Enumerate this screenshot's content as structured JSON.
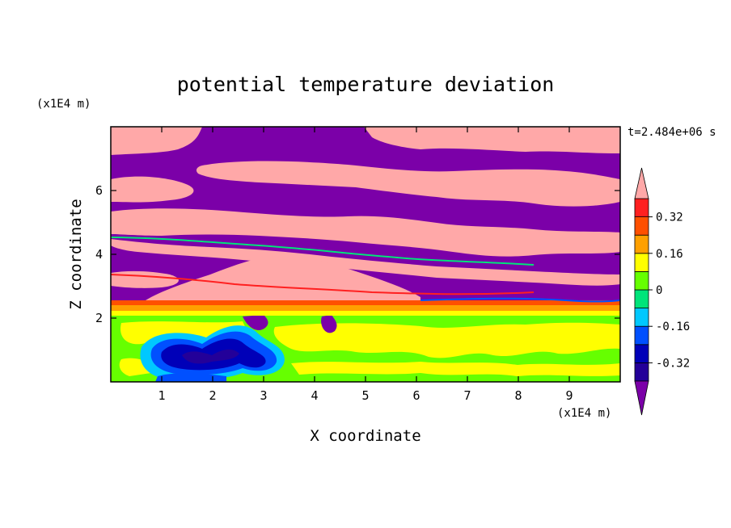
{
  "chart_data": {
    "type": "heatmap",
    "title": "potential temperature deviation",
    "xlabel": "X coordinate",
    "ylabel": "Z coordinate",
    "x_unit": "(x1E4 m)",
    "y_unit": "(x1E4 m)",
    "time_label": "t=2.484e+06 s",
    "xlim": [
      0,
      10
    ],
    "ylim": [
      0,
      8
    ],
    "x_ticks": [
      1,
      2,
      3,
      4,
      5,
      6,
      7,
      8,
      9
    ],
    "y_ticks": [
      2,
      4,
      6
    ],
    "colorbar": {
      "levels": [
        -0.4,
        -0.32,
        -0.24,
        -0.16,
        -0.08,
        0,
        0.08,
        0.16,
        0.24,
        0.32,
        0.4
      ],
      "colors": [
        "#7b00a8",
        "#230099",
        "#0000b8",
        "#0050ff",
        "#00c8ff",
        "#00e47a",
        "#66ff00",
        "#ffff00",
        "#ffa000",
        "#ff5000",
        "#ff2020",
        "#ffa8a8"
      ],
      "tick_labels": [
        "0.32",
        "0.16",
        "0",
        "-0.16",
        "-0.32"
      ],
      "tick_values": [
        0.32,
        0.16,
        0,
        -0.16,
        -0.32
      ],
      "extend": "both"
    },
    "field_description_bands": [
      {
        "z_range": [
          7.2,
          8.0
        ],
        "value": "above 0.4 (pink) with purple gaps"
      },
      {
        "z_range": [
          2.3,
          7.2
        ],
        "value": "alternating layers of purple (below -0.4) and pink (above 0.4)"
      },
      {
        "z_range": [
          2.0,
          2.3
        ],
        "value": "thin red/orange/yellow interface"
      },
      {
        "z_range": [
          0.0,
          2.0
        ],
        "value": "mostly green (~0.04) with yellow patches and blue vortices near x=1-3.5"
      }
    ]
  },
  "colors": {
    "purple": "#7b00a8",
    "pink": "#ffa8a8",
    "green": "#66ff00",
    "yellow": "#ffff00"
  }
}
